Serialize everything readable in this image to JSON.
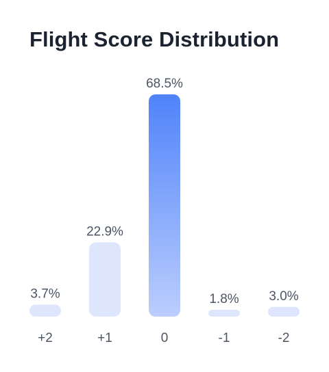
{
  "chart_data": {
    "type": "bar",
    "title": "Flight Score Distribution",
    "categories": [
      "+2",
      "+1",
      "0",
      "-1",
      "-2"
    ],
    "values": [
      3.7,
      22.9,
      68.5,
      1.8,
      3.0
    ],
    "value_labels": [
      "3.7%",
      "22.9%",
      "68.5%",
      "1.8%",
      "3.0%"
    ],
    "highlight_index": 2,
    "ylim": [
      0,
      68.5
    ],
    "grid": false,
    "colors": {
      "bar": "#dde6fd",
      "highlight_top": "#4f83fa",
      "highlight_bottom": "#bccefd",
      "label": "#4b5563",
      "title": "#1b2230"
    }
  }
}
